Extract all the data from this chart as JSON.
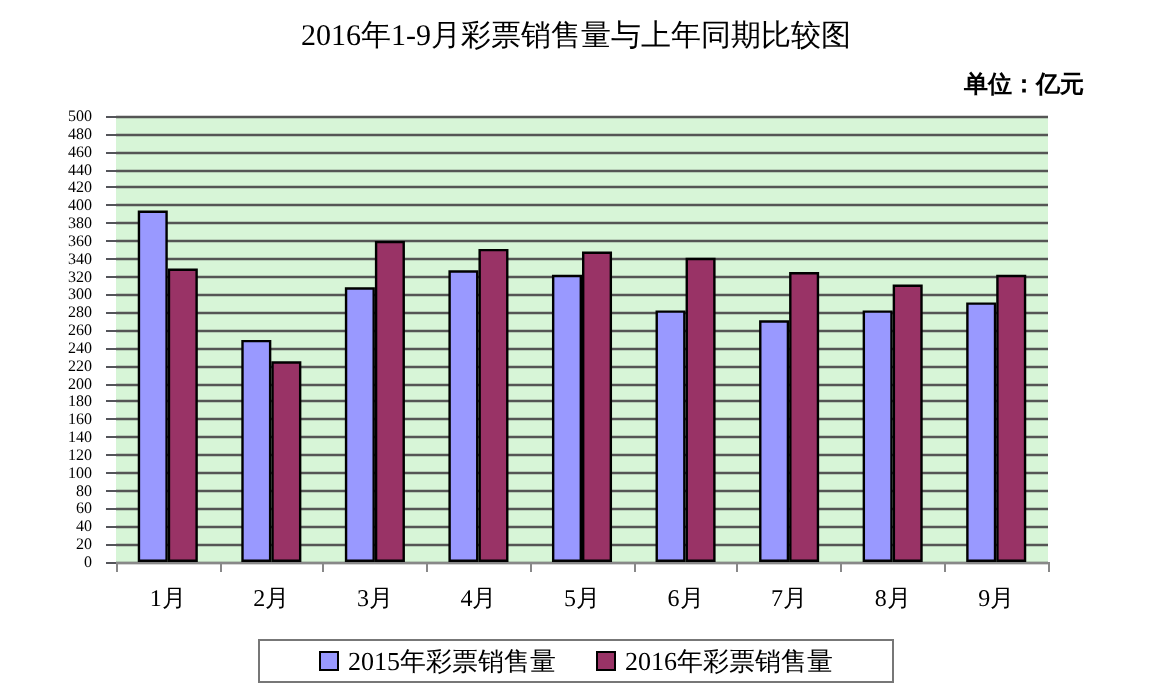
{
  "chart_data": {
    "type": "bar",
    "title": "2016年1-9月彩票销售量与上年同期比较图",
    "annotations": [
      "单位：亿元"
    ],
    "categories": [
      "1月",
      "2月",
      "3月",
      "4月",
      "5月",
      "6月",
      "7月",
      "8月",
      "9月"
    ],
    "series": [
      {
        "name": "2015年彩票销售量",
        "color": "#9999ff",
        "values": [
          394,
          249,
          308,
          327,
          322,
          282,
          271,
          282,
          291
        ]
      },
      {
        "name": "2016年彩票销售量",
        "color": "#993366",
        "values": [
          329,
          225,
          360,
          351,
          348,
          341,
          325,
          311,
          322
        ]
      }
    ],
    "ylim": [
      0,
      500
    ],
    "yticks": [
      0,
      20,
      40,
      60,
      80,
      100,
      120,
      140,
      160,
      180,
      200,
      220,
      240,
      260,
      280,
      300,
      320,
      340,
      360,
      380,
      400,
      420,
      440,
      460,
      480,
      500
    ],
    "grid": "y",
    "legend": "bottom"
  }
}
